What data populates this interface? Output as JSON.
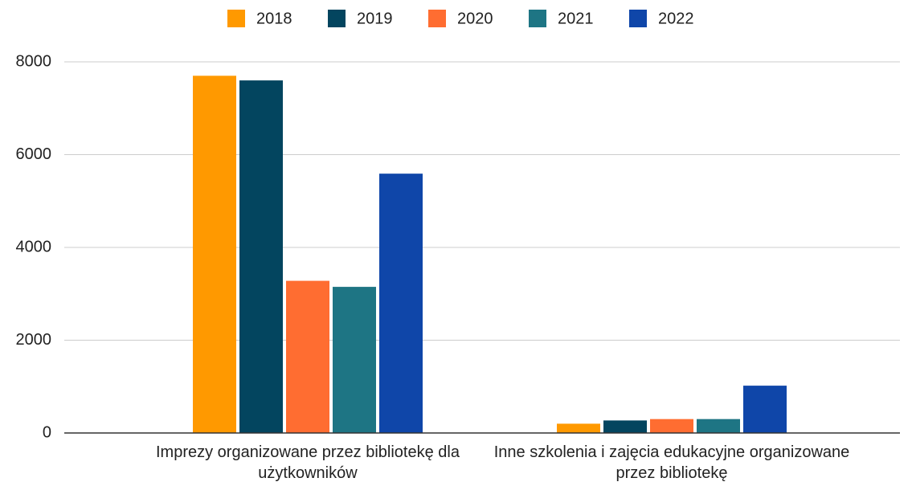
{
  "chart_data": {
    "type": "bar",
    "categories": [
      "Imprezy organizowane przez bibliotekę dla użytkowników",
      "Inne szkolenia i zajęcia edukacyjne organizowane przez bibliotekę"
    ],
    "series": [
      {
        "name": "2018",
        "color": "#ff9900",
        "values": [
          7700,
          200
        ]
      },
      {
        "name": "2019",
        "color": "#03455f",
        "values": [
          7600,
          270
        ]
      },
      {
        "name": "2020",
        "color": "#ff6d31",
        "values": [
          3280,
          300
        ]
      },
      {
        "name": "2021",
        "color": "#1e7584",
        "values": [
          3150,
          300
        ]
      },
      {
        "name": "2022",
        "color": "#0f46a9",
        "values": [
          5590,
          1020
        ]
      }
    ],
    "ylim": [
      0,
      8000
    ],
    "yticks": [
      0,
      2000,
      4000,
      6000,
      8000
    ],
    "grid": true,
    "legend": "top"
  }
}
